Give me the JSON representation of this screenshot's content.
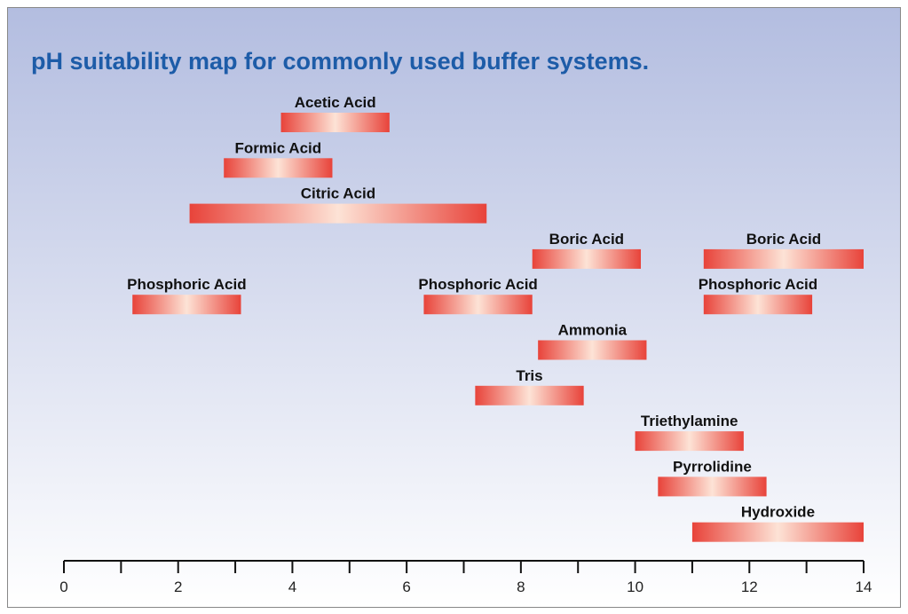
{
  "chart_data": {
    "type": "range",
    "title": "pH suitability map for commonly used buffer systems.",
    "rows": [
      [
        {
          "label": "Acetic Acid",
          "low": 3.8,
          "high": 5.7
        }
      ],
      [
        {
          "label": "Formic Acid",
          "low": 2.8,
          "high": 4.7
        }
      ],
      [
        {
          "label": "Citric Acid",
          "low": 2.2,
          "high": 7.4
        }
      ],
      [
        {
          "label": "Boric Acid",
          "low": 8.2,
          "high": 10.1
        },
        {
          "label": "Boric Acid",
          "low": 11.2,
          "high": 14
        }
      ],
      [
        {
          "label": "Phosphoric Acid",
          "low": 1.2,
          "high": 3.1
        },
        {
          "label": "Phosphoric Acid",
          "low": 6.3,
          "high": 8.2
        },
        {
          "label": "Phosphoric Acid",
          "low": 11.2,
          "high": 13.1
        }
      ],
      [
        {
          "label": "Ammonia",
          "low": 8.3,
          "high": 10.2
        }
      ],
      [
        {
          "label": "Tris",
          "low": 7.2,
          "high": 9.1
        }
      ],
      [
        {
          "label": "Triethylamine",
          "low": 10,
          "high": 11.9
        }
      ],
      [
        {
          "label": "Pyrrolidine",
          "low": 10.4,
          "high": 12.3
        }
      ],
      [
        {
          "label": "Hydroxide",
          "low": 11,
          "high": 14
        }
      ]
    ],
    "xlim": [
      0,
      14
    ],
    "xticks": [
      0,
      2,
      4,
      6,
      8,
      10,
      12,
      14
    ],
    "xminor_ticks": [
      1,
      3,
      5,
      7,
      9,
      11,
      13
    ],
    "color": "#e8433a"
  }
}
